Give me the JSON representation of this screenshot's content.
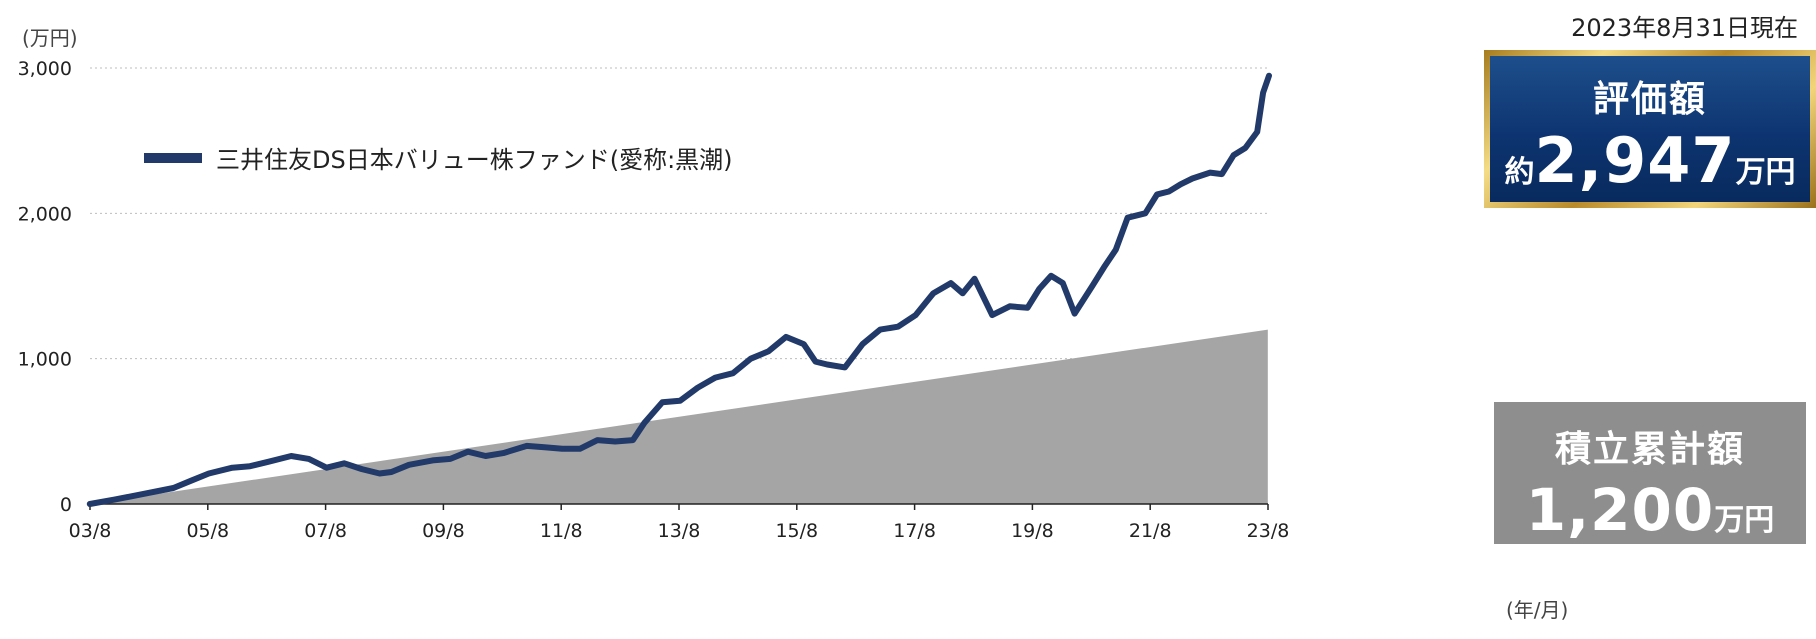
{
  "date_note": "2023年8月31日現在",
  "evaluation": {
    "title": "評価額",
    "prefix": "約",
    "value": "2,947",
    "unit": "万円"
  },
  "cumulative": {
    "title": "積立累計額",
    "value": "1,200",
    "unit": "万円"
  },
  "y_unit_label": "(万円)",
  "x_unit_label": "(年/月)",
  "colors": {
    "fund_line": "#213a69",
    "cumulative_area": "#a5a5a5"
  },
  "chart_data": {
    "type": "line",
    "title": "",
    "legend": {
      "position": "top-left",
      "entries": [
        "三井住友DS日本バリュー株ファンド(愛称:黒潮)"
      ]
    },
    "grid": "horizontal-dotted",
    "x_ticks": [
      "03/8",
      "05/8",
      "07/8",
      "09/8",
      "11/8",
      "13/8",
      "15/8",
      "17/8",
      "19/8",
      "21/8",
      "23/8"
    ],
    "y_ticks": [
      "0",
      "1,000",
      "2,000",
      "3,000"
    ],
    "xlim": [
      "2003-08",
      "2023-08"
    ],
    "ylim": [
      0,
      3000
    ],
    "series": [
      {
        "name": "三井住友DS日本バリュー株ファンド(愛称:黒潮)",
        "kind": "line",
        "x": [
          2003.58,
          2004.0,
          2004.5,
          2005.0,
          2005.3,
          2005.6,
          2006.0,
          2006.3,
          2006.6,
          2007.0,
          2007.3,
          2007.6,
          2007.9,
          2008.2,
          2008.5,
          2008.7,
          2009.0,
          2009.4,
          2009.7,
          2010.0,
          2010.3,
          2010.6,
          2011.0,
          2011.3,
          2011.6,
          2011.9,
          2012.2,
          2012.5,
          2012.8,
          2013.0,
          2013.3,
          2013.6,
          2013.9,
          2014.2,
          2014.5,
          2014.8,
          2015.1,
          2015.4,
          2015.7,
          2015.9,
          2016.1,
          2016.4,
          2016.7,
          2017.0,
          2017.3,
          2017.6,
          2017.9,
          2018.2,
          2018.4,
          2018.6,
          2018.9,
          2019.2,
          2019.5,
          2019.7,
          2019.9,
          2020.1,
          2020.3,
          2020.6,
          2020.8,
          2021.0,
          2021.2,
          2021.5,
          2021.7,
          2021.9,
          2022.1,
          2022.3,
          2022.6,
          2022.8,
          2023.0,
          2023.2,
          2023.4,
          2023.5,
          2023.6
        ],
        "y": [
          0,
          30,
          70,
          110,
          160,
          210,
          250,
          260,
          290,
          330,
          310,
          250,
          280,
          240,
          210,
          220,
          270,
          300,
          310,
          360,
          330,
          350,
          400,
          390,
          380,
          380,
          440,
          430,
          440,
          560,
          700,
          710,
          800,
          870,
          900,
          1000,
          1050,
          1150,
          1100,
          980,
          960,
          940,
          1100,
          1200,
          1220,
          1300,
          1450,
          1520,
          1450,
          1550,
          1300,
          1360,
          1350,
          1480,
          1570,
          1520,
          1310,
          1500,
          1630,
          1750,
          1970,
          2000,
          2130,
          2150,
          2200,
          2240,
          2280,
          2270,
          2400,
          2450,
          2560,
          2830,
          2947
        ]
      },
      {
        "name": "",
        "kind": "area",
        "x": [
          2003.58,
          2023.58
        ],
        "y": [
          0,
          1200
        ]
      }
    ]
  }
}
